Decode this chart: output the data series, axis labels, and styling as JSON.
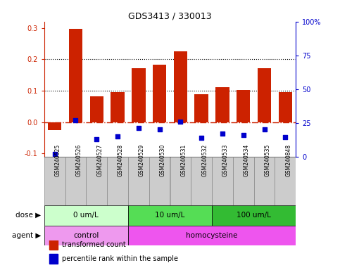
{
  "title": "GDS3413 / 330013",
  "samples": [
    "GSM240525",
    "GSM240526",
    "GSM240527",
    "GSM240528",
    "GSM240529",
    "GSM240530",
    "GSM240531",
    "GSM240532",
    "GSM240533",
    "GSM240534",
    "GSM240535",
    "GSM240848"
  ],
  "transformed_count": [
    -0.025,
    0.298,
    0.082,
    0.095,
    0.172,
    0.182,
    0.225,
    0.088,
    0.11,
    0.103,
    0.172,
    0.095
  ],
  "percentile_rank": [
    2.0,
    27.0,
    13.0,
    15.0,
    21.0,
    20.0,
    26.0,
    14.0,
    17.0,
    16.0,
    20.0,
    14.5
  ],
  "bar_color": "#cc2200",
  "dot_color": "#0000cc",
  "ylim_left": [
    -0.11,
    0.32
  ],
  "ylim_right": [
    0,
    100
  ],
  "yticks_left": [
    -0.1,
    0.0,
    0.1,
    0.2,
    0.3
  ],
  "yticks_right": [
    0,
    25,
    50,
    75,
    100
  ],
  "ytick_labels_right": [
    "0",
    "25",
    "50",
    "75",
    "100%"
  ],
  "hlines": [
    0.1,
    0.2
  ],
  "dose_groups": [
    {
      "label": "0 um/L",
      "start": 0,
      "end": 4,
      "color": "#ccffcc"
    },
    {
      "label": "10 um/L",
      "start": 4,
      "end": 8,
      "color": "#55dd55"
    },
    {
      "label": "100 um/L",
      "start": 8,
      "end": 12,
      "color": "#33bb33"
    }
  ],
  "agent_groups": [
    {
      "label": "control",
      "start": 0,
      "end": 4,
      "color": "#ee99ee"
    },
    {
      "label": "homocysteine",
      "start": 4,
      "end": 12,
      "color": "#ee55ee"
    }
  ],
  "dose_label": "dose",
  "agent_label": "agent",
  "legend_items": [
    {
      "color": "#cc2200",
      "label": "transformed count"
    },
    {
      "color": "#0000cc",
      "label": "percentile rank within the sample"
    }
  ],
  "background_color": "#ffffff",
  "sample_box_color": "#cccccc",
  "sample_box_edge": "#888888",
  "zero_line_color": "#cc2200",
  "zero_line_style": "-.",
  "dotted_line_color": "#000000",
  "dotted_line_style": ":"
}
